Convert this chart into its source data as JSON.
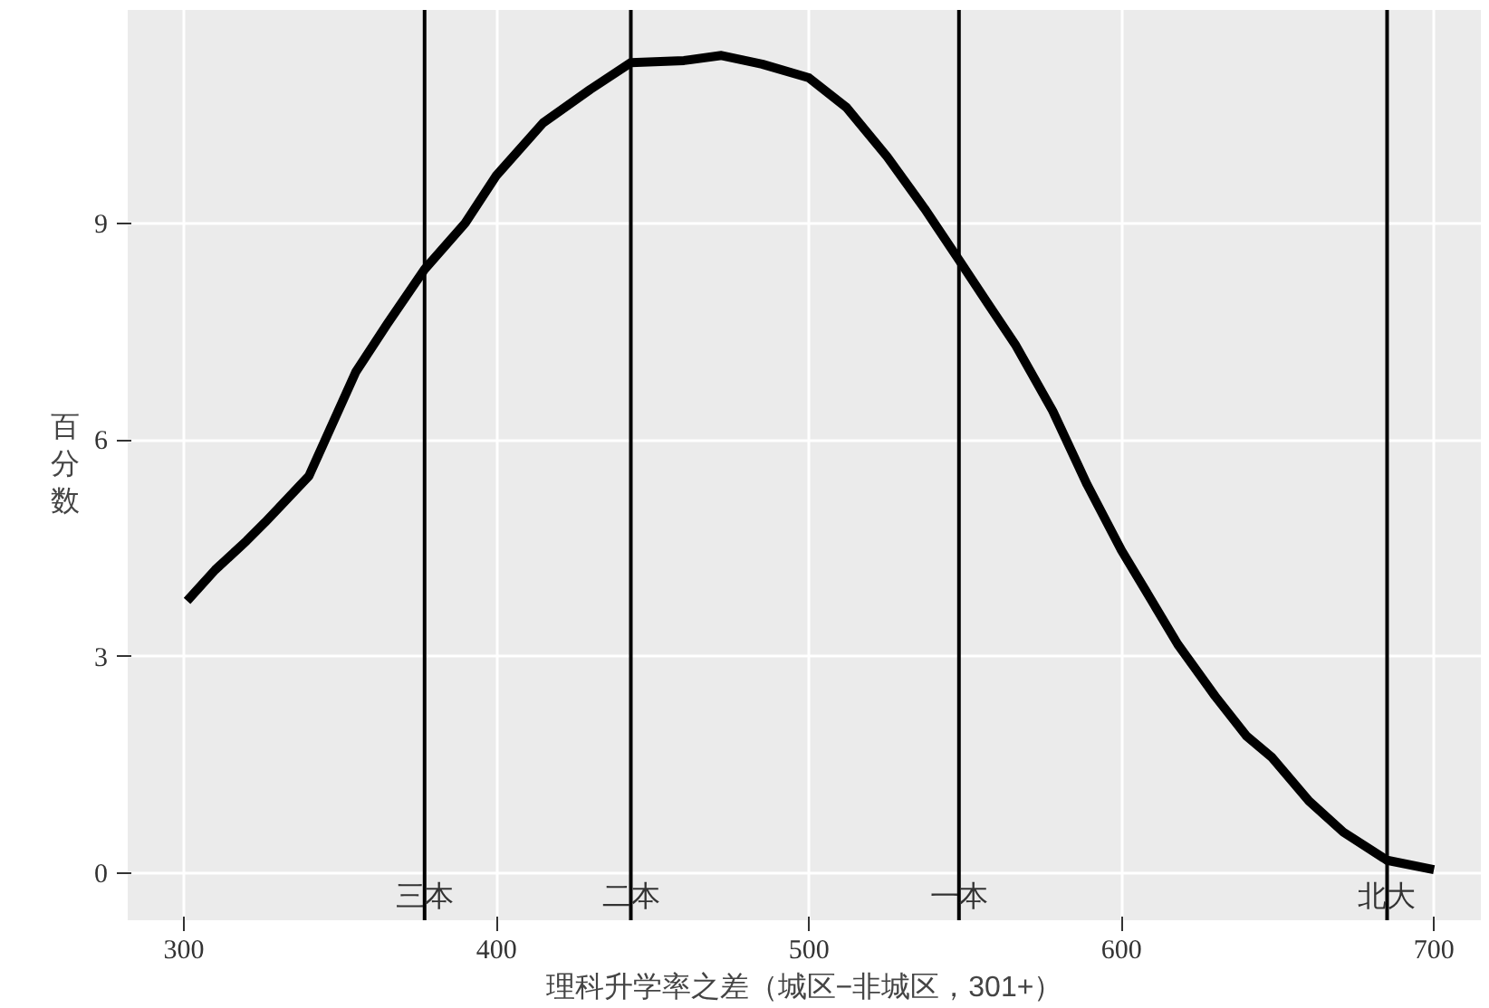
{
  "chart_data": {
    "type": "line",
    "xlabel": "理科升学率之差（城区−非城区，301+）",
    "ylabel": "百分数",
    "x": [
      301,
      310,
      320,
      326,
      340,
      355,
      365,
      377,
      390,
      400,
      415,
      430,
      443,
      460,
      472,
      485,
      500,
      512,
      525,
      537,
      548,
      557,
      566,
      578,
      589,
      600,
      610,
      618,
      630,
      640,
      648,
      660,
      671,
      685,
      700
    ],
    "series": [
      {
        "color": "#000000",
        "values": [
          3.77,
          4.2,
          4.6,
          4.86,
          5.5,
          6.94,
          7.6,
          8.36,
          9.0,
          9.66,
          10.39,
          10.85,
          11.22,
          11.25,
          11.32,
          11.2,
          11.01,
          10.6,
          9.92,
          9.2,
          8.49,
          7.9,
          7.32,
          6.4,
          5.38,
          4.47,
          3.75,
          3.17,
          2.45,
          1.9,
          1.61,
          1.0,
          0.57,
          0.18,
          0.05
        ]
      }
    ],
    "xlim": [
      282,
      715
    ],
    "ylim": [
      -0.65,
      11.95
    ],
    "xticks": [
      300,
      400,
      500,
      600,
      700
    ],
    "yticks": [
      0,
      3,
      6,
      9
    ],
    "grid": true,
    "line_style": "solid",
    "ref_lines": [
      {
        "axis": "x",
        "value": 377,
        "label": "三本"
      },
      {
        "axis": "x",
        "value": 443,
        "label": "二本"
      },
      {
        "axis": "x",
        "value": 548,
        "label": "一本"
      },
      {
        "axis": "x",
        "value": 685,
        "label": "北大"
      }
    ]
  }
}
